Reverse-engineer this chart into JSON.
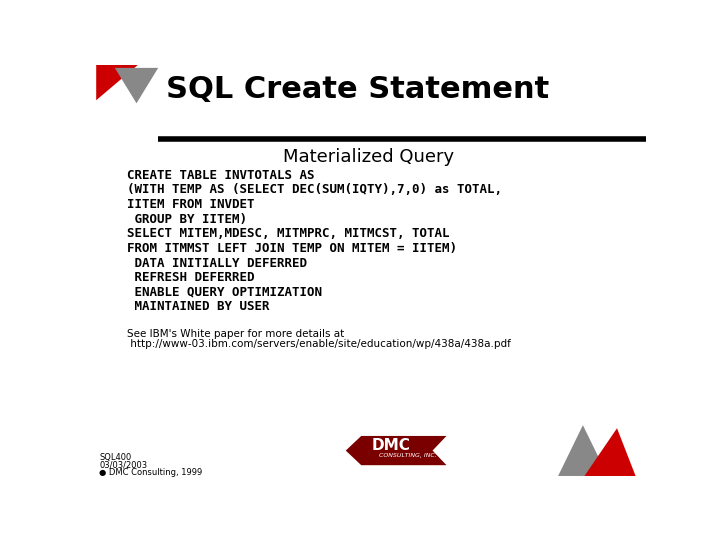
{
  "title": "SQL Create Statement",
  "subtitle": "Materialized Query",
  "bg_color": "#ffffff",
  "title_color": "#000000",
  "subtitle_color": "#000000",
  "code_lines": [
    "CREATE TABLE INVTOTALS AS",
    "(WITH TEMP AS (SELECT DEC(SUM(IQTY),7,0) as TOTAL,",
    "IITEM FROM INVDET",
    " GROUP BY IITEM)",
    "SELECT MITEM,MDESC, MITMPRC, MITMCST, TOTAL",
    "FROM ITMMST LEFT JOIN TEMP ON MITEM = IITEM)",
    " DATA INITIALLY DEFERRED",
    " REFRESH DEFERRED",
    " ENABLE QUERY OPTIMIZATION",
    " MAINTAINED BY USER"
  ],
  "note_lines": [
    "See IBM's White paper for more details at",
    " http://www-03.ibm.com/servers/enable/site/education/wp/438a/438a.pdf"
  ],
  "footer_lines": [
    "SQL400",
    "03/03/2003",
    "● DMC Consulting, 1999"
  ],
  "header_bar_color": "#000000",
  "red_color": "#cc0000",
  "dark_red_color": "#7a0000",
  "gray_color": "#888888"
}
